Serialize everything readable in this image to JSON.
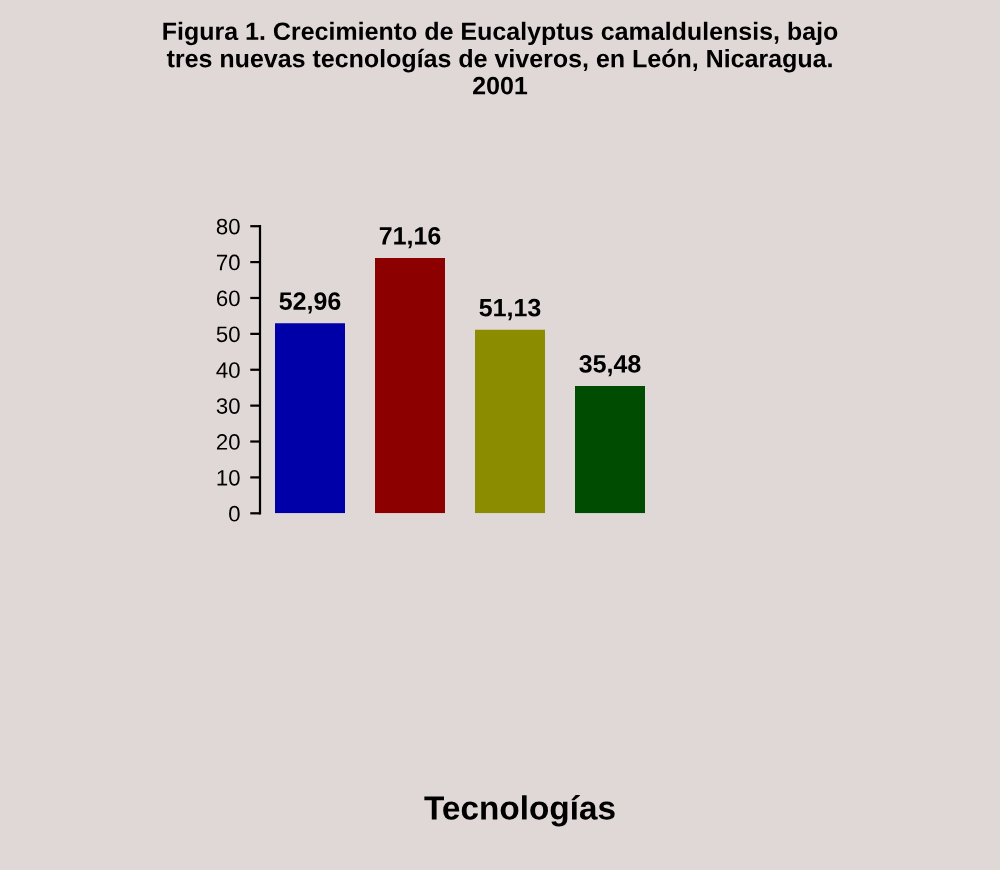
{
  "chart_data": {
    "type": "bar",
    "title": "Figura 1. Crecimiento de Eucalyptus camaldulensis, bajo\ntres nuevas tecnologías de viveros, en León, Nicaragua.\n2001",
    "annotations": [
      "Tecnologías"
    ],
    "categories": [
      null,
      null,
      null,
      null
    ],
    "values": [
      52.96,
      71.16,
      51.13,
      35.48
    ],
    "value_labels": [
      "52,96",
      "71,16",
      "51,13",
      "35,48"
    ],
    "colors": [
      "#0000a8",
      "#8c0000",
      "#8c8c00",
      "#004c00"
    ],
    "ylim": [
      0,
      80
    ],
    "yticks": [
      0,
      10,
      20,
      30,
      40,
      50,
      60,
      70,
      80
    ],
    "grid": false,
    "legend": false
  }
}
